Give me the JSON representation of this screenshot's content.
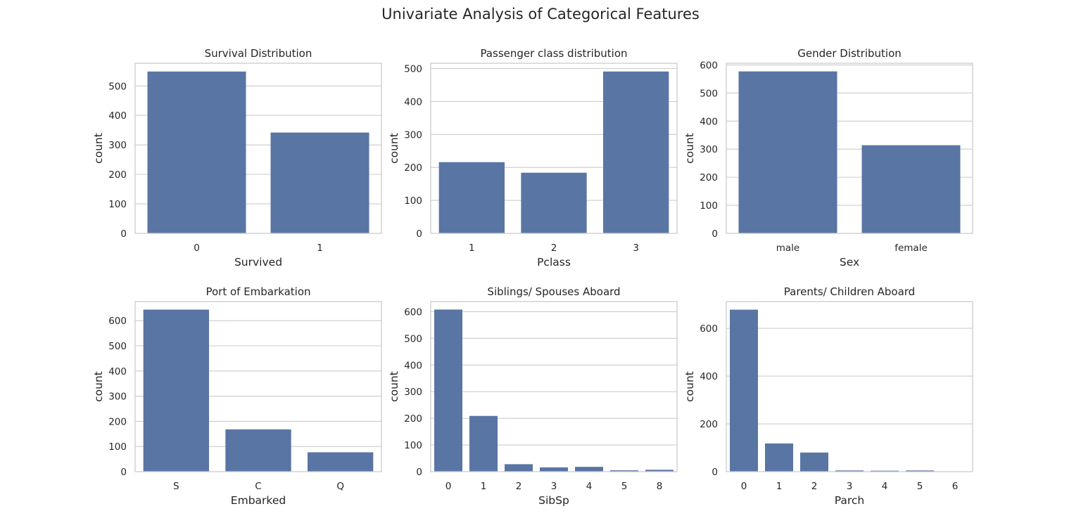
{
  "figure": {
    "title": "Univariate Analysis of Categorical Features",
    "bar_color": "#5975a4",
    "grid_color": "#cccccc",
    "text_color": "#262626"
  },
  "chart_data": [
    {
      "type": "bar",
      "title": "Survival Distribution",
      "xlabel": "Survived",
      "ylabel": "count",
      "categories": [
        "0",
        "1"
      ],
      "values": [
        549,
        342
      ],
      "ylim": [
        0,
        577
      ],
      "yticks": [
        "0",
        "100",
        "200",
        "300",
        "400",
        "500"
      ],
      "grid": true
    },
    {
      "type": "bar",
      "title": "Passenger class distribution",
      "xlabel": "Pclass",
      "ylabel": "count",
      "categories": [
        "1",
        "2",
        "3"
      ],
      "values": [
        216,
        184,
        491
      ],
      "ylim": [
        0,
        516
      ],
      "yticks": [
        "0",
        "100",
        "200",
        "300",
        "400",
        "500"
      ],
      "grid": true
    },
    {
      "type": "bar",
      "title": "Gender Distribution",
      "xlabel": "Sex",
      "ylabel": "count",
      "categories": [
        "male",
        "female"
      ],
      "values": [
        577,
        314
      ],
      "ylim": [
        0,
        606
      ],
      "yticks": [
        "0",
        "100",
        "200",
        "300",
        "400",
        "500",
        "600"
      ],
      "grid": true
    },
    {
      "type": "bar",
      "title": "Port of Embarkation",
      "xlabel": "Embarked",
      "ylabel": "count",
      "categories": [
        "S",
        "C",
        "Q"
      ],
      "values": [
        644,
        168,
        77
      ],
      "ylim": [
        0,
        676
      ],
      "yticks": [
        "0",
        "100",
        "200",
        "300",
        "400",
        "500",
        "600"
      ],
      "grid": true
    },
    {
      "type": "bar",
      "title": "Siblings/ Spouses Aboard",
      "xlabel": "SibSp",
      "ylabel": "count",
      "categories": [
        "0",
        "1",
        "2",
        "3",
        "4",
        "5",
        "8"
      ],
      "values": [
        608,
        209,
        28,
        16,
        18,
        5,
        7
      ],
      "ylim": [
        0,
        638
      ],
      "yticks": [
        "0",
        "100",
        "200",
        "300",
        "400",
        "500",
        "600"
      ],
      "grid": true
    },
    {
      "type": "bar",
      "title": "Parents/ Children Aboard",
      "xlabel": "Parch",
      "ylabel": "count",
      "categories": [
        "0",
        "1",
        "2",
        "3",
        "4",
        "5",
        "6"
      ],
      "values": [
        678,
        118,
        80,
        5,
        4,
        5,
        1
      ],
      "ylim": [
        0,
        712
      ],
      "yticks": [
        "0",
        "200",
        "400",
        "600"
      ],
      "grid": true
    }
  ]
}
